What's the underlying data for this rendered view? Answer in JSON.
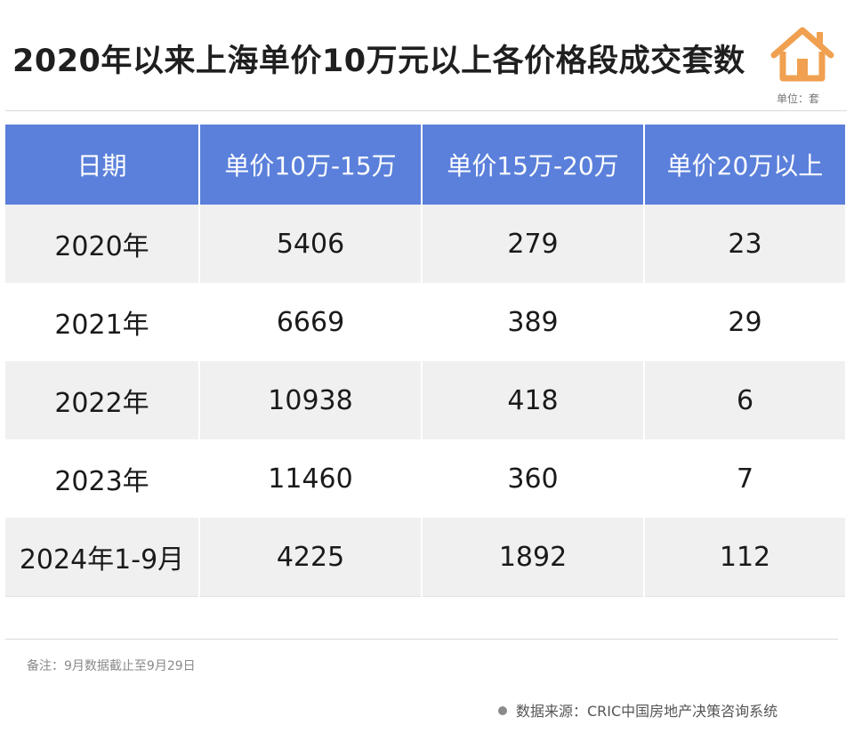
{
  "title": "2020年以来上海单价10万元以上各价格段成交套数",
  "unit_label": "单位：套",
  "logo": {
    "icon": "house-icon",
    "color": "#f0a050"
  },
  "colors": {
    "header_bg": "#5b80db",
    "header_text": "#ffffff",
    "row_alt": "#f0f0f0"
  },
  "chart_data": {
    "type": "table",
    "columns": [
      "日期",
      "单价10万-15万",
      "单价15万-20万",
      "单价20万以上"
    ],
    "rows": [
      [
        "2020年",
        "5406",
        "279",
        "23"
      ],
      [
        "2021年",
        "6669",
        "389",
        "29"
      ],
      [
        "2022年",
        "10938",
        "418",
        "6"
      ],
      [
        "2023年",
        "11460",
        "360",
        "7"
      ],
      [
        "2024年1-9月",
        "4225",
        "1892",
        "112"
      ]
    ]
  },
  "note": "备注：9月数据截止至9月29日",
  "source": "数据来源：CRIC中国房地产决策咨询系统"
}
